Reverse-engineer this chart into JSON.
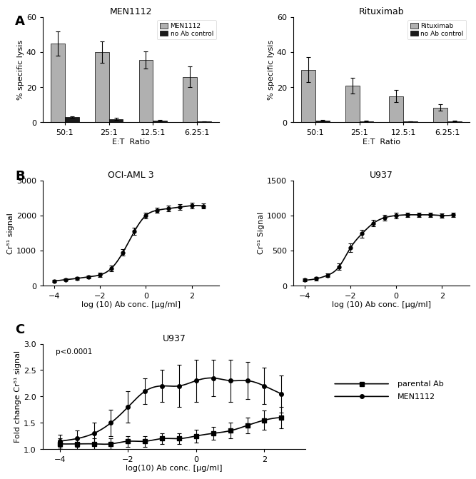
{
  "panel_A_left": {
    "title": "MEN1112",
    "xlabel": "E:T  Ratio",
    "ylabel": "% specific lysis",
    "categories": [
      "50:1",
      "25:1",
      "12.5:1",
      "6.25:1"
    ],
    "bar1_values": [
      45,
      40,
      35.5,
      26
    ],
    "bar1_errors": [
      7,
      6,
      5,
      6
    ],
    "bar1_color": "#b0b0b0",
    "bar1_label": "MEN1112",
    "bar2_values": [
      3,
      2,
      1,
      0.5
    ],
    "bar2_errors": [
      0.5,
      0.5,
      0.3,
      0.2
    ],
    "bar2_color": "#1a1a1a",
    "bar2_label": "no Ab control",
    "ylim": [
      0,
      60
    ],
    "yticks": [
      0,
      20,
      40,
      60
    ]
  },
  "panel_A_right": {
    "title": "Rituximab",
    "xlabel": "E:T  Ratio",
    "ylabel": "% specific lysis",
    "categories": [
      "50:1",
      "25:1",
      "12.5:1",
      "6.25:1"
    ],
    "bar1_values": [
      30,
      21,
      15,
      8.5
    ],
    "bar1_errors": [
      7,
      4.5,
      3.5,
      2
    ],
    "bar1_color": "#b0b0b0",
    "bar1_label": "Rituximab",
    "bar2_values": [
      1,
      0.8,
      0.6,
      0.7
    ],
    "bar2_errors": [
      0.3,
      0.2,
      0.2,
      0.2
    ],
    "bar2_color": "#1a1a1a",
    "bar2_label": "no Ab control",
    "ylim": [
      0,
      60
    ],
    "yticks": [
      0,
      20,
      40,
      60
    ]
  },
  "panel_B_left": {
    "title": "OCI-AML 3",
    "xlabel": "log (10) Ab conc. [µg/ml]",
    "ylabel": "Cr⁵¹ signal",
    "x": [
      -4,
      -3.5,
      -3,
      -2.5,
      -2,
      -1.5,
      -1,
      -0.5,
      0,
      0.5,
      1,
      1.5,
      2,
      2.5
    ],
    "y": [
      130,
      175,
      210,
      255,
      310,
      500,
      950,
      1550,
      2000,
      2150,
      2200,
      2240,
      2280,
      2270
    ],
    "yerr": [
      30,
      35,
      35,
      45,
      55,
      80,
      95,
      110,
      80,
      70,
      75,
      80,
      75,
      75
    ],
    "ylim": [
      0,
      3000
    ],
    "yticks": [
      0,
      1000,
      2000,
      3000
    ],
    "xlim": [
      -4.5,
      3.2
    ],
    "xticks": [
      -4,
      -2,
      0,
      2
    ]
  },
  "panel_B_right": {
    "title": "U937",
    "xlabel": "log (10) Ab conc. [µg/ml]",
    "ylabel": "Cr⁵¹ Signal",
    "x": [
      -4,
      -3.5,
      -3,
      -2.5,
      -2,
      -1.5,
      -1,
      -0.5,
      0,
      0.5,
      1,
      1.5,
      2,
      2.5
    ],
    "y": [
      80,
      100,
      150,
      270,
      540,
      740,
      890,
      970,
      1000,
      1010,
      1010,
      1010,
      1000,
      1010
    ],
    "yerr": [
      20,
      22,
      28,
      48,
      58,
      58,
      48,
      38,
      38,
      28,
      28,
      28,
      32,
      32
    ],
    "ylim": [
      0,
      1500
    ],
    "yticks": [
      0,
      500,
      1000,
      1500
    ],
    "xlim": [
      -4.5,
      3.2
    ],
    "xticks": [
      -4,
      -2,
      0,
      2
    ]
  },
  "panel_C": {
    "title": "U937",
    "xlabel": "log(10) Ab conc. [µg/ml]",
    "ylabel": "Fold change Cr⁵¹ signal",
    "annotation": "p<0.0001",
    "MEN1112_x": [
      -4,
      -3.5,
      -3,
      -2.5,
      -2,
      -1.5,
      -1,
      -0.5,
      0,
      0.5,
      1,
      1.5,
      2,
      2.5
    ],
    "MEN1112_y": [
      1.15,
      1.2,
      1.3,
      1.5,
      1.8,
      2.1,
      2.2,
      2.2,
      2.3,
      2.35,
      2.3,
      2.3,
      2.2,
      2.05
    ],
    "MEN1112_yerr": [
      0.12,
      0.15,
      0.2,
      0.25,
      0.3,
      0.25,
      0.3,
      0.4,
      0.4,
      0.35,
      0.4,
      0.35,
      0.35,
      0.35
    ],
    "parental_x": [
      -4,
      -3.5,
      -3,
      -2.5,
      -2,
      -1.5,
      -1,
      -0.5,
      0,
      0.5,
      1,
      1.5,
      2,
      2.5
    ],
    "parental_y": [
      1.1,
      1.1,
      1.1,
      1.1,
      1.15,
      1.15,
      1.2,
      1.2,
      1.25,
      1.3,
      1.35,
      1.45,
      1.55,
      1.6
    ],
    "parental_yerr": [
      0.1,
      0.1,
      0.1,
      0.1,
      0.1,
      0.1,
      0.1,
      0.1,
      0.12,
      0.12,
      0.15,
      0.15,
      0.18,
      0.2
    ],
    "ylim": [
      1.0,
      3.0
    ],
    "yticks": [
      1.0,
      1.5,
      2.0,
      2.5,
      3.0
    ],
    "xlim": [
      -4.5,
      3.2
    ],
    "xticks": [
      -4,
      -2,
      0,
      2
    ]
  },
  "label_fontsize": 8,
  "title_fontsize": 9,
  "panel_label_fontsize": 13,
  "tick_fontsize": 8
}
